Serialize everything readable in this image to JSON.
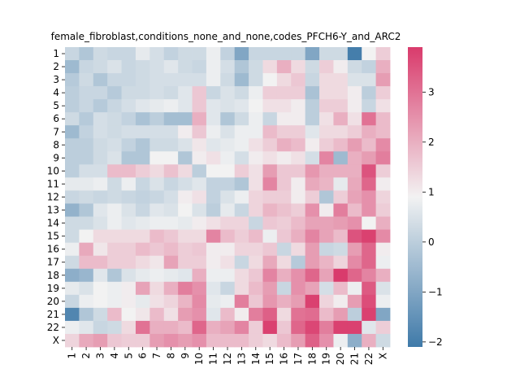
{
  "chart_data": {
    "type": "heatmap",
    "title": "female_fibroblast,conditions_none_and_none,codes_PFCH6-Y_and_ARC2",
    "x_categories": [
      "1",
      "2",
      "3",
      "4",
      "5",
      "6",
      "7",
      "8",
      "9",
      "10",
      "11",
      "12",
      "13",
      "14",
      "15",
      "16",
      "17",
      "18",
      "19",
      "20",
      "21",
      "22",
      "X"
    ],
    "y_categories": [
      "1",
      "2",
      "3",
      "4",
      "5",
      "6",
      "7",
      "8",
      "9",
      "10",
      "11",
      "12",
      "13",
      "14",
      "15",
      "16",
      "17",
      "18",
      "19",
      "20",
      "21",
      "22",
      "X"
    ],
    "values": [
      [
        0.2,
        -0.2,
        0.3,
        0.2,
        0.2,
        0.7,
        0.4,
        0.1,
        0.3,
        0.3,
        0.8,
        0.1,
        -1.0,
        0.2,
        0.2,
        0.2,
        0.2,
        -1.0,
        0.3,
        0.3,
        -2.0,
        0.9,
        1.5
      ],
      [
        -0.5,
        0.2,
        0.3,
        0.5,
        0.2,
        0.3,
        0.4,
        0.6,
        0.3,
        0.2,
        0.8,
        0.4,
        -0.2,
        0.3,
        1.3,
        2.0,
        1.3,
        0.3,
        1.5,
        1.0,
        0.3,
        0.1,
        2.0
      ],
      [
        -0.1,
        0.3,
        -0.2,
        0.2,
        0.2,
        0.3,
        0.4,
        0.4,
        0.4,
        0.4,
        0.8,
        0.3,
        -0.5,
        0.3,
        0.9,
        1.3,
        1.6,
        0.2,
        1.3,
        1.3,
        0.5,
        0.5,
        2.3
      ],
      [
        0.0,
        0.2,
        0.2,
        -0.1,
        0.3,
        0.3,
        0.4,
        0.3,
        0.6,
        1.6,
        0.2,
        0.5,
        0.3,
        0.8,
        1.5,
        1.5,
        1.5,
        -0.3,
        1.3,
        1.3,
        1.0,
        0.0,
        1.5
      ],
      [
        0.0,
        0.2,
        -0.1,
        0.2,
        0.4,
        0.6,
        0.7,
        0.8,
        0.6,
        1.6,
        0.6,
        0.5,
        0.6,
        0.9,
        1.2,
        1.2,
        1.0,
        0.0,
        1.5,
        1.5,
        1.0,
        0.2,
        1.2
      ],
      [
        0.3,
        -0.1,
        0.4,
        0.3,
        0.1,
        -0.3,
        0.0,
        -0.4,
        -0.4,
        2.0,
        0.6,
        -0.2,
        0.3,
        0.8,
        0.2,
        1.0,
        1.0,
        0.0,
        1.2,
        2.0,
        1.2,
        3.0,
        1.8
      ],
      [
        -0.5,
        0.1,
        0.4,
        0.3,
        0.4,
        0.4,
        0.4,
        0.4,
        1.0,
        1.6,
        0.8,
        0.5,
        0.8,
        0.8,
        1.8,
        1.5,
        1.5,
        0.6,
        1.3,
        1.3,
        1.5,
        2.0,
        1.8
      ],
      [
        0.0,
        0.0,
        0.3,
        0.4,
        0.1,
        -0.2,
        0.3,
        0.3,
        0.5,
        1.1,
        0.6,
        0.7,
        0.8,
        1.2,
        1.5,
        2.0,
        1.8,
        1.0,
        1.5,
        1.8,
        2.3,
        1.8,
        2.6
      ],
      [
        0.0,
        0.0,
        0.3,
        0.5,
        -0.2,
        -0.2,
        0.9,
        0.9,
        -0.2,
        1.0,
        1.2,
        0.8,
        0.4,
        1.0,
        1.2,
        1.0,
        1.2,
        0.4,
        2.7,
        -0.5,
        2.0,
        2.3,
        2.8
      ],
      [
        0.0,
        0.4,
        0.4,
        1.8,
        1.8,
        1.5,
        1.3,
        1.7,
        1.3,
        0.0,
        0.9,
        0.9,
        1.5,
        1.2,
        2.3,
        1.6,
        1.6,
        2.4,
        2.0,
        2.0,
        2.0,
        3.5,
        1.5
      ],
      [
        0.7,
        0.7,
        0.8,
        0.3,
        0.8,
        0.2,
        0.5,
        0.2,
        0.4,
        0.6,
        0.1,
        0.1,
        -0.2,
        1.2,
        2.7,
        1.6,
        1.0,
        2.1,
        1.9,
        0.7,
        2.1,
        3.2,
        1.0
      ],
      [
        0.2,
        0.3,
        0.2,
        0.3,
        0.2,
        0.1,
        0.2,
        0.4,
        1.0,
        1.2,
        0.1,
        0.5,
        0.8,
        1.4,
        1.5,
        1.5,
        1.0,
        1.5,
        -0.2,
        1.5,
        2.2,
        2.5,
        1.4
      ],
      [
        -0.7,
        -0.2,
        0.6,
        0.8,
        0.5,
        0.2,
        0.6,
        0.5,
        0.9,
        0.5,
        0.0,
        0.7,
        0.2,
        1.4,
        1.9,
        1.7,
        1.5,
        2.5,
        1.0,
        2.8,
        1.8,
        2.5,
        1.5
      ],
      [
        0.3,
        0.3,
        0.5,
        0.8,
        0.6,
        0.7,
        0.8,
        0.8,
        0.7,
        1.0,
        1.2,
        1.4,
        1.4,
        0.2,
        1.6,
        1.5,
        1.8,
        2.2,
        2.2,
        2.3,
        2.5,
        0.9,
        2.0
      ],
      [
        0.3,
        0.9,
        1.3,
        1.3,
        1.3,
        1.3,
        1.8,
        1.6,
        1.3,
        1.3,
        2.7,
        1.8,
        1.5,
        1.8,
        0.8,
        1.6,
        2.0,
        2.7,
        2.2,
        1.8,
        3.5,
        3.8,
        2.6
      ],
      [
        0.8,
        2.1,
        1.1,
        1.5,
        1.5,
        1.8,
        1.6,
        1.8,
        1.5,
        1.6,
        1.0,
        1.0,
        1.4,
        1.4,
        1.6,
        0.2,
        1.3,
        2.3,
        0.2,
        0.3,
        2.3,
        3.2,
        1.0
      ],
      [
        0.3,
        1.8,
        1.8,
        1.5,
        1.5,
        1.3,
        1.1,
        2.2,
        1.5,
        1.5,
        1.0,
        1.2,
        0.2,
        1.3,
        2.1,
        1.3,
        -0.1,
        2.3,
        1.9,
        1.4,
        2.6,
        3.2,
        0.8
      ],
      [
        -0.8,
        -0.6,
        0.6,
        -0.2,
        0.5,
        0.7,
        0.8,
        0.7,
        0.6,
        2.0,
        0.8,
        0.8,
        1.3,
        1.6,
        2.7,
        2.0,
        2.5,
        3.2,
        2.2,
        3.9,
        3.2,
        2.7,
        2.0
      ],
      [
        0.7,
        0.5,
        0.9,
        0.8,
        1.0,
        2.2,
        1.3,
        2.0,
        2.8,
        2.5,
        0.6,
        0.2,
        1.3,
        1.8,
        2.3,
        0.2,
        2.5,
        2.2,
        0.4,
        1.8,
        0.8,
        3.4,
        0.5
      ],
      [
        0.2,
        0.8,
        0.9,
        0.8,
        1.0,
        0.7,
        1.2,
        1.4,
        1.9,
        2.6,
        0.7,
        0.8,
        2.8,
        1.6,
        2.4,
        2.0,
        2.3,
        3.8,
        1.4,
        1.0,
        2.3,
        3.6,
        0.8
      ],
      [
        -1.8,
        -0.2,
        0.3,
        1.8,
        0.9,
        1.1,
        1.8,
        1.2,
        2.3,
        2.5,
        0.6,
        1.8,
        1.0,
        2.8,
        3.3,
        1.3,
        3.0,
        3.1,
        1.8,
        2.3,
        0.0,
        3.8,
        -1.0
      ],
      [
        0.8,
        0.6,
        0.2,
        0.3,
        1.3,
        3.0,
        2.0,
        2.0,
        1.8,
        3.2,
        2.0,
        2.2,
        2.7,
        1.5,
        3.8,
        1.6,
        3.2,
        3.7,
        2.8,
        3.8,
        3.8,
        0.6,
        1.5
      ],
      [
        1.4,
        2.1,
        2.3,
        1.6,
        1.5,
        1.5,
        2.3,
        2.5,
        2.3,
        2.5,
        1.8,
        1.8,
        1.8,
        1.5,
        1.3,
        1.8,
        2.3,
        3.3,
        2.5,
        0.8,
        -0.8,
        2.0,
        0.3
      ]
    ],
    "vmin": -2.1,
    "vmax": 3.9,
    "colorbar_ticks": [
      -2,
      -1,
      0,
      1,
      2,
      3
    ],
    "colormap": {
      "low": "#3f7aa9",
      "mid": "#f2f2f2",
      "high": "#d93b6c"
    },
    "xlabel": "",
    "ylabel": ""
  }
}
